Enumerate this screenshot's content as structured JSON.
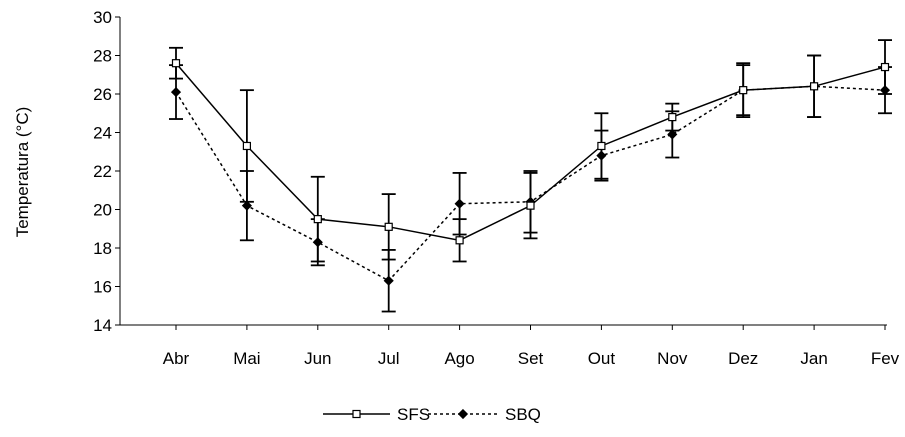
{
  "chart_data": {
    "type": "line",
    "title": "",
    "xlabel": "",
    "ylabel": "Temperatura (°C)",
    "ylim": [
      14,
      30
    ],
    "yticks": [
      14,
      16,
      18,
      20,
      22,
      24,
      26,
      28,
      30
    ],
    "categories": [
      "Abr",
      "Mai",
      "Jun",
      "Jul",
      "Ago",
      "Set",
      "Out",
      "Nov",
      "Dez",
      "Jan",
      "Fev"
    ],
    "grid": false,
    "legend": "bottom-center",
    "series": [
      {
        "name": "SFS",
        "line_style": "solid",
        "marker": "open-square",
        "color": "#000000",
        "values": [
          27.6,
          23.3,
          19.5,
          19.1,
          18.4,
          20.2,
          23.3,
          24.8,
          26.2,
          26.4,
          27.4
        ],
        "error": [
          0.8,
          2.9,
          2.2,
          1.7,
          1.1,
          1.7,
          1.7,
          0.7,
          1.4,
          1.6,
          1.4
        ]
      },
      {
        "name": "SBQ",
        "line_style": "dotted",
        "marker": "filled-diamond",
        "color": "#000000",
        "values": [
          26.1,
          20.2,
          18.3,
          16.3,
          20.3,
          20.4,
          22.8,
          23.9,
          26.2,
          26.4,
          26.2
        ],
        "error": [
          1.4,
          1.8,
          1.2,
          1.6,
          1.6,
          1.6,
          1.3,
          1.2,
          1.3,
          1.6,
          1.2
        ]
      }
    ]
  }
}
